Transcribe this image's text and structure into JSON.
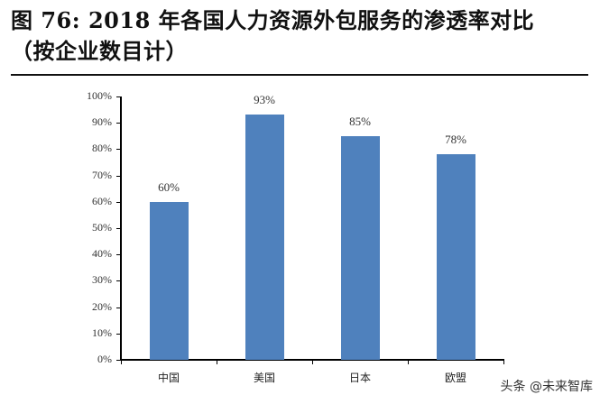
{
  "title": {
    "line1": "图 76:  2018 年各国人力资源外包服务的渗透率对比",
    "line2": "（按企业数目计）"
  },
  "watermark": "头条 @未来智库",
  "chart_data": {
    "type": "bar",
    "title": "2018年各国人力资源外包服务的渗透率对比（按企业数目计）",
    "categories": [
      "中国",
      "美国",
      "日本",
      "欧盟"
    ],
    "values": [
      60,
      93,
      85,
      78
    ],
    "value_labels": [
      "60%",
      "93%",
      "85%",
      "78%"
    ],
    "xlabel": "",
    "ylabel": "",
    "ylim": [
      0,
      100
    ],
    "yticks": [
      "0%",
      "10%",
      "20%",
      "30%",
      "40%",
      "50%",
      "60%",
      "70%",
      "80%",
      "90%",
      "100%"
    ],
    "grid": false,
    "legend": null,
    "bar_color": "#4f81bd"
  }
}
